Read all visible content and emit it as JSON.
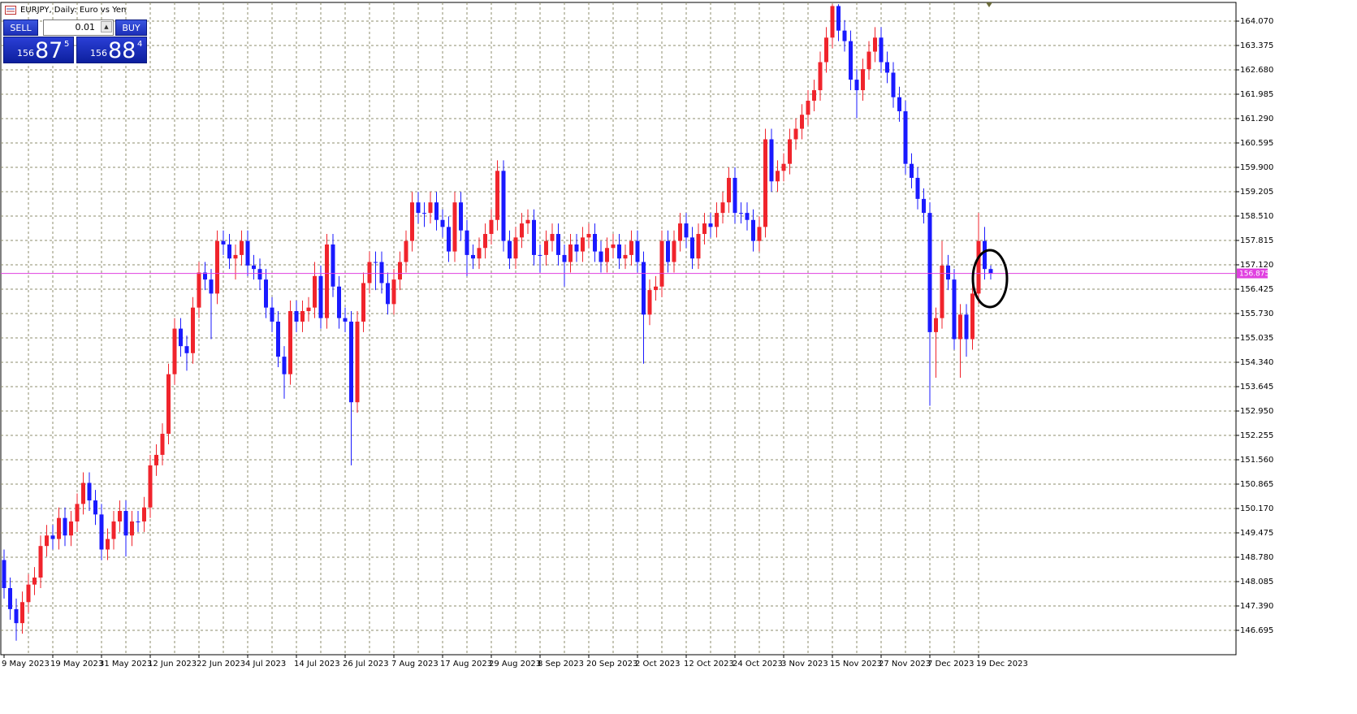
{
  "chart_data": {
    "type": "candlestick",
    "title": "EURJPY, Daily:  Euro vs Yen",
    "categories": [
      "9 May 2023",
      null,
      null,
      null,
      null,
      null,
      null,
      null,
      "19 May 2023",
      null,
      null,
      null,
      null,
      null,
      null,
      null,
      "31 May 2023",
      null,
      null,
      null,
      null,
      null,
      null,
      null,
      "12 Jun 2023",
      null,
      null,
      null,
      null,
      null,
      null,
      null,
      "22 Jun 2023",
      null,
      null,
      null,
      null,
      null,
      null,
      null,
      "4 Jul 2023",
      null,
      null,
      null,
      null,
      null,
      null,
      null,
      "14 Jul 2023",
      null,
      null,
      null,
      null,
      null,
      null,
      null,
      "26 Jul 2023",
      null,
      null,
      null,
      null,
      null,
      null,
      null,
      "7 Aug 2023",
      null,
      null,
      null,
      null,
      null,
      null,
      null,
      "17 Aug 2023",
      null,
      null,
      null,
      null,
      null,
      null,
      null,
      "29 Aug 2023",
      null,
      null,
      null,
      null,
      null,
      null,
      null,
      "8 Sep 2023",
      null,
      null,
      null,
      null,
      null,
      null,
      null,
      "20 Sep 2023",
      null,
      null,
      null,
      null,
      null,
      null,
      null,
      "2 Oct 2023",
      null,
      null,
      null,
      null,
      null,
      null,
      null,
      "12 Oct 2023",
      null,
      null,
      null,
      null,
      null,
      null,
      null,
      "24 Oct 2023",
      null,
      null,
      null,
      null,
      null,
      null,
      null,
      "3 Nov 2023",
      null,
      null,
      null,
      null,
      null,
      null,
      null,
      "15 Nov 2023",
      null,
      null,
      null,
      null,
      null,
      null,
      null,
      "27 Nov 2023",
      null,
      null,
      null,
      null,
      null,
      null,
      null,
      "7 Dec 2023",
      null,
      null,
      null,
      null,
      null,
      null,
      null,
      "19 Dec 2023",
      null,
      null
    ],
    "open": [
      148.7,
      147.9,
      147.3,
      146.9,
      147.5,
      148.0,
      148.2,
      149.1,
      149.4,
      149.3,
      149.9,
      149.4,
      149.8,
      150.3,
      150.9,
      150.4,
      150.0,
      149.0,
      149.3,
      149.8,
      150.1,
      149.4,
      149.8,
      149.8,
      150.2,
      151.4,
      151.7,
      152.3,
      154.0,
      155.3,
      154.8,
      154.6,
      155.9,
      156.9,
      156.7,
      156.3,
      157.8,
      157.7,
      157.3,
      157.4,
      157.8,
      157.1,
      157.0,
      156.7,
      155.9,
      155.5,
      154.5,
      154.0,
      155.8,
      155.5,
      155.8,
      155.9,
      156.8,
      155.6,
      157.7,
      156.5,
      155.6,
      155.5,
      153.2,
      155.5,
      156.6,
      157.2,
      157.2,
      156.6,
      156.0,
      156.7,
      157.2,
      157.8,
      158.9,
      158.6,
      158.6,
      158.9,
      158.4,
      158.2,
      157.5,
      158.9,
      158.1,
      157.4,
      157.3,
      157.6,
      158.0,
      158.4,
      159.8,
      157.8,
      157.3,
      157.9,
      158.3,
      158.4,
      157.4,
      157.4,
      157.8,
      158.0,
      157.4,
      157.2,
      157.7,
      157.5,
      157.9,
      158.0,
      157.5,
      157.2,
      157.6,
      157.7,
      157.3,
      157.4,
      157.8,
      157.2,
      155.7,
      156.4,
      156.5,
      157.8,
      157.2,
      157.8,
      158.3,
      157.9,
      157.3,
      158.0,
      158.3,
      158.2,
      158.6,
      158.9,
      159.6,
      158.6,
      158.6,
      158.4,
      157.8,
      158.2,
      160.7,
      159.5,
      159.8,
      160.0,
      160.7,
      161.0,
      161.4,
      161.8,
      162.1,
      162.9,
      163.6,
      164.5,
      163.8,
      163.5,
      162.4,
      162.1,
      162.7,
      163.2,
      163.6,
      162.9,
      162.6,
      161.9,
      161.5,
      160.0,
      159.6,
      159.0,
      158.6,
      155.2,
      155.6,
      157.1,
      156.7,
      155.0,
      155.7,
      155.0,
      156.3,
      157.8,
      157.0
    ],
    "high": [
      149.0,
      148.2,
      147.6,
      147.8,
      148.3,
      148.5,
      149.4,
      149.7,
      149.7,
      150.2,
      150.2,
      150.1,
      150.6,
      151.2,
      151.2,
      150.7,
      150.3,
      149.6,
      150.1,
      150.4,
      150.4,
      150.1,
      150.1,
      150.5,
      151.7,
      152.0,
      152.6,
      154.3,
      155.6,
      155.6,
      155.1,
      156.2,
      157.2,
      157.2,
      157.0,
      158.1,
      158.1,
      158.0,
      157.7,
      158.1,
      158.1,
      157.4,
      157.3,
      157.0,
      156.2,
      155.8,
      154.8,
      156.1,
      156.1,
      156.1,
      156.2,
      157.2,
      157.1,
      158.0,
      158.0,
      156.8,
      155.9,
      155.8,
      155.8,
      156.9,
      157.5,
      157.5,
      157.5,
      156.9,
      157.0,
      157.5,
      158.1,
      159.2,
      159.2,
      158.9,
      159.2,
      159.2,
      158.7,
      158.5,
      159.2,
      159.2,
      158.4,
      157.7,
      157.9,
      158.3,
      158.7,
      160.1,
      160.1,
      158.1,
      158.2,
      158.6,
      158.7,
      158.7,
      157.7,
      158.1,
      158.3,
      158.3,
      157.7,
      158.0,
      158.0,
      158.2,
      158.3,
      158.3,
      157.8,
      157.9,
      158.0,
      158.0,
      157.7,
      158.1,
      158.1,
      157.5,
      156.7,
      156.8,
      158.1,
      158.1,
      158.1,
      158.6,
      158.6,
      158.2,
      158.3,
      158.6,
      158.6,
      158.9,
      159.2,
      159.9,
      159.9,
      158.9,
      158.9,
      158.7,
      158.5,
      161.0,
      161.0,
      160.1,
      160.3,
      161.0,
      161.3,
      161.7,
      162.1,
      162.4,
      163.2,
      163.9,
      164.55,
      164.55,
      164.1,
      163.8,
      162.7,
      163.0,
      163.5,
      163.9,
      163.9,
      163.2,
      162.9,
      162.2,
      161.8,
      160.3,
      159.9,
      159.3,
      158.9,
      155.9,
      157.8,
      157.4,
      157.0,
      156.0,
      156.0,
      156.6,
      158.6,
      158.2,
      157.1
    ],
    "low": [
      147.6,
      147.0,
      146.4,
      146.6,
      147.2,
      147.7,
      147.9,
      148.8,
      149.0,
      149.0,
      149.1,
      149.1,
      149.5,
      150.0,
      150.1,
      149.7,
      148.7,
      148.7,
      149.0,
      149.5,
      148.8,
      149.1,
      149.5,
      149.5,
      149.9,
      151.1,
      151.4,
      152.0,
      153.7,
      154.5,
      154.1,
      154.3,
      155.6,
      156.4,
      155.0,
      156.0,
      157.4,
      157.0,
      156.7,
      157.1,
      156.8,
      156.7,
      156.4,
      155.6,
      155.2,
      154.2,
      153.3,
      153.7,
      155.2,
      155.2,
      155.5,
      155.6,
      155.3,
      155.3,
      156.2,
      155.3,
      155.2,
      151.4,
      152.9,
      155.2,
      156.3,
      156.4,
      156.3,
      155.7,
      155.7,
      156.4,
      156.9,
      157.5,
      158.3,
      158.2,
      158.3,
      158.1,
      157.9,
      157.2,
      157.2,
      157.8,
      156.8,
      157.0,
      157.0,
      157.3,
      157.7,
      158.1,
      157.5,
      157.0,
      157.0,
      157.6,
      158.0,
      157.1,
      156.9,
      157.1,
      157.5,
      157.1,
      156.5,
      156.9,
      157.2,
      157.2,
      157.6,
      157.2,
      156.9,
      156.9,
      157.3,
      157.0,
      157.0,
      157.1,
      156.9,
      154.3,
      155.4,
      156.1,
      156.2,
      156.9,
      156.9,
      157.5,
      157.6,
      157.0,
      157.0,
      157.7,
      157.9,
      157.9,
      158.3,
      158.6,
      158.3,
      158.3,
      158.1,
      157.5,
      157.5,
      157.9,
      159.2,
      159.2,
      159.5,
      159.7,
      160.4,
      160.7,
      161.1,
      161.5,
      161.8,
      162.6,
      163.3,
      163.5,
      163.2,
      162.1,
      161.3,
      161.8,
      162.4,
      162.9,
      162.6,
      162.3,
      161.6,
      161.2,
      159.7,
      159.3,
      158.7,
      158.3,
      153.1,
      153.9,
      155.3,
      156.4,
      154.7,
      153.9,
      154.5,
      154.7,
      156.0,
      156.7,
      156.7
    ],
    "close": [
      147.9,
      147.3,
      146.9,
      147.5,
      148.0,
      148.2,
      149.1,
      149.4,
      149.3,
      149.9,
      149.4,
      149.8,
      150.3,
      150.9,
      150.4,
      150.0,
      149.0,
      149.3,
      149.8,
      150.1,
      149.4,
      149.8,
      149.8,
      150.2,
      151.4,
      151.7,
      152.3,
      154.0,
      155.3,
      154.8,
      154.6,
      155.9,
      156.9,
      156.7,
      156.3,
      157.8,
      157.7,
      157.3,
      157.4,
      157.8,
      157.1,
      157.0,
      156.7,
      155.9,
      155.5,
      154.5,
      154.0,
      155.8,
      155.5,
      155.8,
      155.9,
      156.8,
      155.6,
      157.7,
      156.5,
      155.6,
      155.5,
      153.2,
      155.5,
      156.6,
      157.2,
      157.2,
      156.6,
      156.0,
      156.7,
      157.2,
      157.8,
      158.9,
      158.6,
      158.6,
      158.9,
      158.4,
      158.2,
      157.5,
      158.9,
      158.1,
      157.4,
      157.3,
      157.6,
      158.0,
      158.4,
      159.8,
      157.8,
      157.3,
      157.9,
      158.3,
      158.4,
      157.4,
      157.4,
      157.8,
      158.0,
      157.4,
      157.2,
      157.7,
      157.5,
      157.9,
      158.0,
      157.5,
      157.2,
      157.6,
      157.7,
      157.3,
      157.4,
      157.8,
      157.2,
      155.7,
      156.4,
      156.5,
      157.8,
      157.2,
      157.8,
      158.3,
      157.9,
      157.3,
      158.0,
      158.3,
      158.2,
      158.6,
      158.9,
      159.6,
      158.6,
      158.6,
      158.4,
      157.8,
      158.2,
      160.7,
      159.5,
      159.8,
      160.0,
      160.7,
      161.0,
      161.4,
      161.8,
      162.1,
      162.9,
      163.6,
      164.5,
      163.8,
      163.5,
      162.4,
      162.1,
      162.7,
      163.2,
      163.6,
      162.9,
      162.6,
      161.9,
      161.5,
      160.0,
      159.6,
      159.0,
      158.6,
      155.2,
      155.6,
      157.1,
      156.7,
      155.0,
      155.7,
      155.0,
      156.3,
      157.8,
      157.0,
      156.875
    ],
    "up_color": "#f0242c",
    "down_color": "#1a1aff",
    "current_price": 156.875,
    "current_price_color": "#e040e0",
    "ylim": [
      146.0,
      164.603
    ],
    "yticks": [
      146.695,
      {
        "value": 147.39,
        "label": "147.390"
      },
      148.085,
      {
        "value": 148.78,
        "label": "148.780"
      },
      149.475,
      {
        "value": 150.17,
        "label": "150.170"
      },
      150.865,
      {
        "value": 151.56,
        "label": "151.560"
      },
      152.255,
      {
        "value": 152.95,
        "label": "152.950"
      },
      153.645,
      {
        "value": 154.34,
        "label": "154.340"
      },
      155.035,
      {
        "value": 155.73,
        "label": "155.730"
      },
      156.425,
      {
        "value": 157.12,
        "label": "157.120"
      },
      157.815,
      {
        "value": 158.51,
        "label": "158.510"
      },
      159.205,
      {
        "value": 159.9,
        "label": "159.900"
      },
      160.595,
      {
        "value": 161.29,
        "label": "161.290"
      },
      161.985,
      {
        "value": 162.68,
        "label": "162.680"
      },
      163.375,
      {
        "value": 164.07,
        "label": "164.070"
      }
    ],
    "grid": true
  },
  "trade_panel": {
    "sell_label": "SELL",
    "buy_label": "BUY",
    "lot": "0.01",
    "sell_price": {
      "big_figure": "156",
      "pips": "87",
      "point": "5"
    },
    "buy_price": {
      "big_figure": "156",
      "pips": "88",
      "point": "4"
    }
  }
}
